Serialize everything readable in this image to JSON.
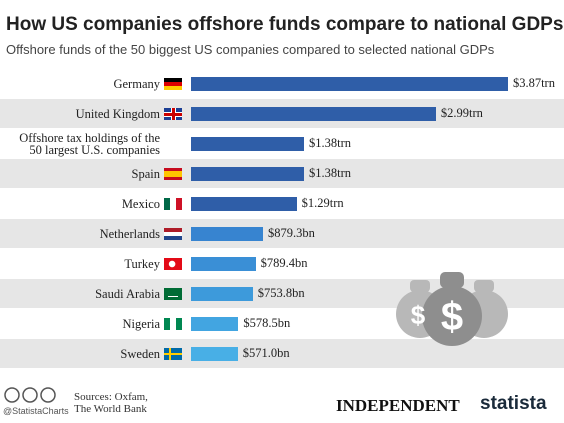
{
  "chart_data": {
    "type": "bar",
    "orientation": "horizontal",
    "title": "How US companies offshore funds compare to national GDPs",
    "subtitle": "Offshore funds of the 50 biggest US companies compared to selected national GDPs",
    "categories": [
      "Germany",
      "United Kingdom",
      "Offshore tax holdings of the\n50 largest U.S. companies",
      "Spain",
      "Mexico",
      "Netherlands",
      "Turkey",
      "Saudi Arabia",
      "Nigeria",
      "Sweden"
    ],
    "values": [
      3870,
      2990,
      1380,
      1380,
      1290,
      879.3,
      789.4,
      753.8,
      578.5,
      571.0
    ],
    "value_labels": [
      "$3.87trn",
      "$2.99trn",
      "$1.38trn",
      "$1.38trn",
      "$1.29trn",
      "$879.3bn",
      "$789.4bn",
      "$753.8bn",
      "$578.5bn",
      "$571.0bn"
    ],
    "colors": [
      "#2f5ea8",
      "#2f5ea8",
      "#2f5ea8",
      "#2f5ea8",
      "#2f5ea8",
      "#3784d0",
      "#3a8fd6",
      "#3d9adb",
      "#42a5e1",
      "#48afe6"
    ]
  },
  "footer": {
    "handle": "@StatistaCharts",
    "sources": "Sources: Oxfam,\nThe World Bank",
    "publisher": "INDEPENDENT",
    "brand": "statista"
  }
}
